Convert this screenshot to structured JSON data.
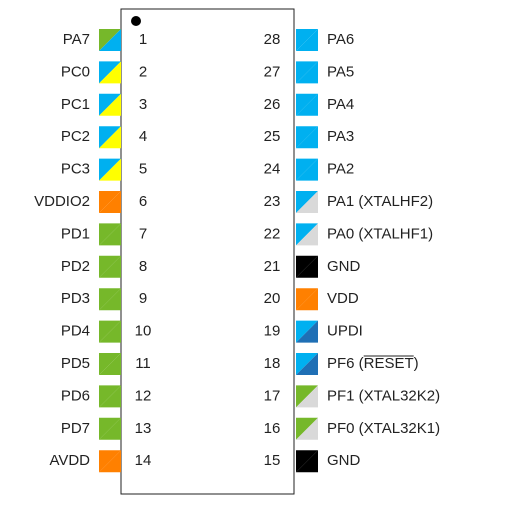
{
  "pins": {
    "left": [
      {
        "number": 1,
        "label": "PA7",
        "colors": [
          "#76b82a",
          "#00b0f0"
        ]
      },
      {
        "number": 2,
        "label": "PC0",
        "colors": [
          "#00b0f0",
          "#ffff00"
        ]
      },
      {
        "number": 3,
        "label": "PC1",
        "colors": [
          "#00b0f0",
          "#ffff00"
        ]
      },
      {
        "number": 4,
        "label": "PC2",
        "colors": [
          "#00b0f0",
          "#ffff00"
        ]
      },
      {
        "number": 5,
        "label": "PC3",
        "colors": [
          "#00b0f0",
          "#ffff00"
        ]
      },
      {
        "number": 6,
        "label": "VDDIO2",
        "colors": [
          "#ff8000",
          "#ff8000"
        ]
      },
      {
        "number": 7,
        "label": "PD1",
        "colors": [
          "#76b82a",
          "#76b82a"
        ]
      },
      {
        "number": 8,
        "label": "PD2",
        "colors": [
          "#76b82a",
          "#76b82a"
        ]
      },
      {
        "number": 9,
        "label": "PD3",
        "colors": [
          "#76b82a",
          "#76b82a"
        ]
      },
      {
        "number": 10,
        "label": "PD4",
        "colors": [
          "#76b82a",
          "#76b82a"
        ]
      },
      {
        "number": 11,
        "label": "PD5",
        "colors": [
          "#76b82a",
          "#76b82a"
        ]
      },
      {
        "number": 12,
        "label": "PD6",
        "colors": [
          "#76b82a",
          "#76b82a"
        ]
      },
      {
        "number": 13,
        "label": "PD7",
        "colors": [
          "#76b82a",
          "#76b82a"
        ]
      },
      {
        "number": 14,
        "label": "AVDD",
        "colors": [
          "#ff8000",
          "#ff8000"
        ]
      }
    ],
    "right": [
      {
        "number": 28,
        "label": "PA6",
        "colors": [
          "#00b0f0",
          "#00b0f0"
        ]
      },
      {
        "number": 27,
        "label": "PA5",
        "colors": [
          "#00b0f0",
          "#00b0f0"
        ]
      },
      {
        "number": 26,
        "label": "PA4",
        "colors": [
          "#00b0f0",
          "#00b0f0"
        ]
      },
      {
        "number": 25,
        "label": "PA3",
        "colors": [
          "#00b0f0",
          "#00b0f0"
        ]
      },
      {
        "number": 24,
        "label": "PA2",
        "colors": [
          "#00b0f0",
          "#00b0f0"
        ]
      },
      {
        "number": 23,
        "label": "PA1 (XTALHF2)",
        "colors": [
          "#00b0f0",
          "#d9d9d9"
        ]
      },
      {
        "number": 22,
        "label": "PA0 (XTALHF1)",
        "colors": [
          "#00b0f0",
          "#d9d9d9"
        ]
      },
      {
        "number": 21,
        "label": "GND",
        "colors": [
          "#000000",
          "#000000"
        ]
      },
      {
        "number": 20,
        "label": "VDD",
        "colors": [
          "#ff8000",
          "#ff8000"
        ]
      },
      {
        "number": 19,
        "label": "UPDI",
        "colors": [
          "#00b0f0",
          "#1f6fb5"
        ]
      },
      {
        "number": 18,
        "label": "PF6 (RESET)",
        "colors": [
          "#00b0f0",
          "#1f6fb5"
        ]
      },
      {
        "number": 17,
        "label": "PF1 (XTAL32K2)",
        "colors": [
          "#76b82a",
          "#d9d9d9"
        ]
      },
      {
        "number": 16,
        "label": "PF0 (XTAL32K1)",
        "colors": [
          "#76b82a",
          "#d9d9d9"
        ]
      },
      {
        "number": 15,
        "label": "GND",
        "colors": [
          "#000000",
          "#000000"
        ]
      }
    ]
  }
}
